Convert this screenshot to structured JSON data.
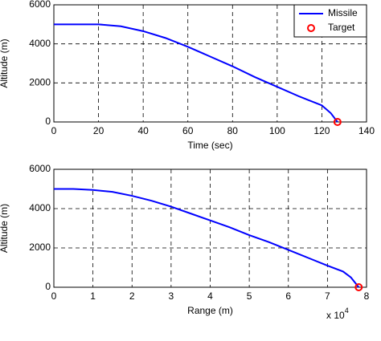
{
  "chart_data": [
    {
      "type": "line",
      "xlabel": "Time (sec)",
      "ylabel": "Altitude (m)",
      "xlim": [
        0,
        140
      ],
      "xticks": [
        0,
        20,
        40,
        60,
        80,
        100,
        120,
        140
      ],
      "ylim": [
        0,
        6000
      ],
      "yticks": [
        0,
        2000,
        4000,
        6000
      ],
      "grid": true,
      "legend": "upper right",
      "series": [
        {
          "name": "Missile",
          "color": "#0000ff",
          "marker": "line",
          "x": [
            0,
            10,
            20,
            30,
            40,
            50,
            60,
            70,
            80,
            90,
            100,
            110,
            120,
            124,
            127
          ],
          "values": [
            5000,
            5000,
            5000,
            4900,
            4650,
            4300,
            3850,
            3350,
            2850,
            2300,
            1800,
            1300,
            850,
            450,
            0
          ]
        },
        {
          "name": "Target",
          "color": "#ff0000",
          "marker": "circle",
          "x": [
            127
          ],
          "values": [
            0
          ]
        }
      ]
    },
    {
      "type": "line",
      "xlabel": "Range (m)",
      "ylabel": "Altitude (m)",
      "x_multiplier": "x 10",
      "x_multiplier_exponent": "4",
      "xlim": [
        0,
        8
      ],
      "xticks": [
        0,
        1,
        2,
        3,
        4,
        5,
        6,
        7,
        8
      ],
      "ylim": [
        0,
        6000
      ],
      "yticks": [
        0,
        2000,
        4000,
        6000
      ],
      "grid": true,
      "series": [
        {
          "color": "#0000ff",
          "marker": "line",
          "x": [
            0,
            0.5,
            1,
            1.5,
            2,
            2.5,
            3,
            3.5,
            4,
            4.5,
            5,
            5.5,
            6,
            6.5,
            7,
            7.4,
            7.6,
            7.8
          ],
          "values": [
            5000,
            5000,
            4950,
            4850,
            4650,
            4400,
            4100,
            3750,
            3400,
            3050,
            2650,
            2300,
            1900,
            1500,
            1100,
            800,
            500,
            0
          ]
        },
        {
          "color": "#ff0000",
          "marker": "circle",
          "x": [
            7.8
          ],
          "values": [
            0
          ]
        }
      ]
    }
  ]
}
